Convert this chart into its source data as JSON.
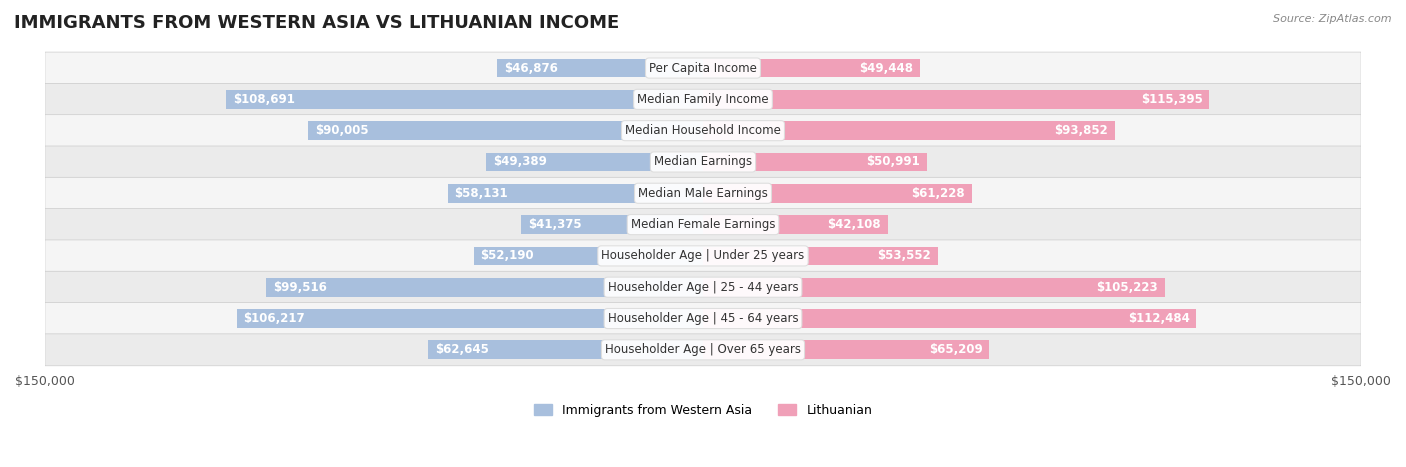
{
  "title": "IMMIGRANTS FROM WESTERN ASIA VS LITHUANIAN INCOME",
  "source": "Source: ZipAtlas.com",
  "categories": [
    "Per Capita Income",
    "Median Family Income",
    "Median Household Income",
    "Median Earnings",
    "Median Male Earnings",
    "Median Female Earnings",
    "Householder Age | Under 25 years",
    "Householder Age | 25 - 44 years",
    "Householder Age | 45 - 64 years",
    "Householder Age | Over 65 years"
  ],
  "left_values": [
    46876,
    108691,
    90005,
    49389,
    58131,
    41375,
    52190,
    99516,
    106217,
    62645
  ],
  "right_values": [
    49448,
    115395,
    93852,
    50991,
    61228,
    42108,
    53552,
    105223,
    112484,
    65209
  ],
  "left_labels": [
    "$46,876",
    "$108,691",
    "$90,005",
    "$49,389",
    "$58,131",
    "$41,375",
    "$52,190",
    "$99,516",
    "$106,217",
    "$62,645"
  ],
  "right_labels": [
    "$49,448",
    "$115,395",
    "$93,852",
    "$50,991",
    "$61,228",
    "$42,108",
    "$53,552",
    "$105,223",
    "$112,484",
    "$65,209"
  ],
  "left_color": "#a8bfdd",
  "right_color": "#f0a0b8",
  "left_color_dark": "#7090c0",
  "right_color_dark": "#e06890",
  "left_legend": "Immigrants from Western Asia",
  "right_legend": "Lithuanian",
  "max_val": 150000,
  "bar_height": 0.6,
  "row_bg_color": "#f0f0f0",
  "row_bg_alt": "#e8e8e8",
  "title_fontsize": 13,
  "label_fontsize": 8.5,
  "cat_fontsize": 8.5,
  "axis_label_fontsize": 9,
  "background_color": "#ffffff"
}
